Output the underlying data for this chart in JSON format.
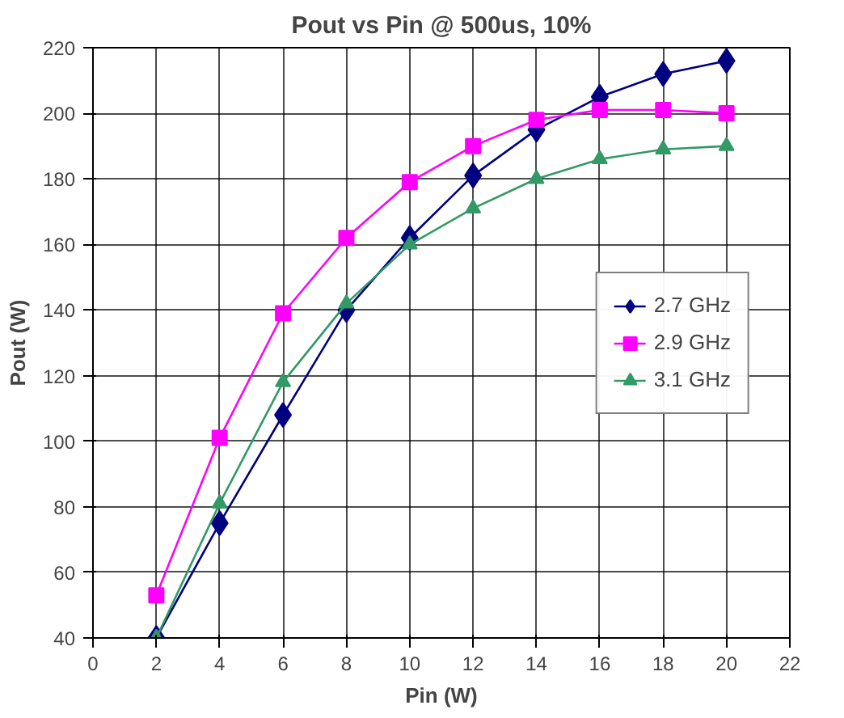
{
  "chart_data": {
    "type": "line",
    "title": "Pout vs Pin @ 500us, 10%",
    "xlabel": "Pin (W)",
    "ylabel": "Pout (W)",
    "x": [
      2,
      4,
      6,
      8,
      10,
      12,
      14,
      16,
      18,
      20
    ],
    "series": [
      {
        "name": "2.7 GHz",
        "color": "#000080",
        "marker": "diamond",
        "values": [
          40,
          75,
          108,
          140,
          162,
          181,
          195,
          205,
          212,
          216
        ]
      },
      {
        "name": "2.9 GHz",
        "color": "#ff00ff",
        "marker": "square",
        "values": [
          53,
          101,
          139,
          162,
          179,
          190,
          198,
          201,
          201,
          200
        ]
      },
      {
        "name": "3.1 GHz",
        "color": "#339966",
        "marker": "triangle",
        "values": [
          40,
          81,
          118,
          142,
          160,
          171,
          180,
          186,
          189,
          190
        ]
      }
    ],
    "xlim": [
      0,
      22
    ],
    "xticks": [
      0,
      2,
      4,
      6,
      8,
      10,
      12,
      14,
      16,
      18,
      20,
      22
    ],
    "ylim": [
      40,
      220
    ],
    "yticks": [
      40,
      60,
      80,
      100,
      120,
      140,
      160,
      180,
      200,
      220
    ],
    "grid": true,
    "legend": "right",
    "line_style": "solid"
  }
}
